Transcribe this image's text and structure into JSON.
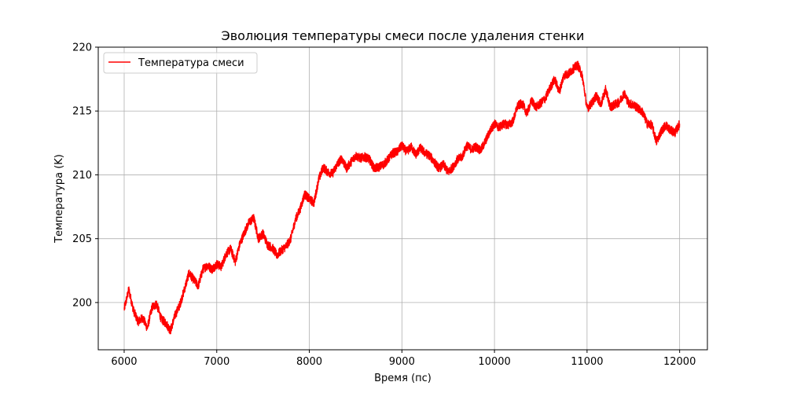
{
  "chart_data": {
    "type": "line",
    "title": "Эволюция температуры смеси после удаления стенки",
    "xlabel": "Время (пс)",
    "ylabel": "Температура (K)",
    "xlim": [
      5720,
      12300
    ],
    "ylim": [
      196.3,
      220
    ],
    "xticks": [
      6000,
      7000,
      8000,
      9000,
      10000,
      11000,
      12000
    ],
    "yticks": [
      200,
      205,
      210,
      215,
      220
    ],
    "grid": true,
    "legend": "top-left",
    "series": [
      {
        "name": "Температура смеси",
        "color": "#ff0000",
        "x": [
          6000,
          6050,
          6100,
          6150,
          6200,
          6250,
          6300,
          6350,
          6400,
          6450,
          6500,
          6550,
          6600,
          6650,
          6700,
          6750,
          6800,
          6850,
          6900,
          6950,
          7000,
          7050,
          7100,
          7150,
          7200,
          7250,
          7300,
          7350,
          7400,
          7450,
          7500,
          7550,
          7600,
          7650,
          7700,
          7750,
          7800,
          7850,
          7900,
          7950,
          8000,
          8050,
          8100,
          8150,
          8200,
          8250,
          8300,
          8350,
          8400,
          8450,
          8500,
          8550,
          8600,
          8650,
          8700,
          8750,
          8800,
          8850,
          8900,
          8950,
          9000,
          9050,
          9100,
          9150,
          9200,
          9250,
          9300,
          9350,
          9400,
          9450,
          9500,
          9550,
          9600,
          9650,
          9700,
          9750,
          9800,
          9850,
          9900,
          9950,
          10000,
          10050,
          10100,
          10150,
          10200,
          10250,
          10300,
          10350,
          10400,
          10450,
          10500,
          10550,
          10600,
          10650,
          10700,
          10750,
          10800,
          10850,
          10900,
          10950,
          11000,
          11050,
          11100,
          11150,
          11200,
          11250,
          11300,
          11350,
          11400,
          11450,
          11500,
          11550,
          11600,
          11650,
          11700,
          11750,
          11800,
          11850,
          11900,
          11950,
          12000
        ],
        "y": [
          199.5,
          201.0,
          199.4,
          198.5,
          198.8,
          198.0,
          199.6,
          199.9,
          198.7,
          198.4,
          197.8,
          199.0,
          199.8,
          201.0,
          202.3,
          201.8,
          201.3,
          202.6,
          202.9,
          202.6,
          203.0,
          202.8,
          203.8,
          204.2,
          203.2,
          204.6,
          205.5,
          206.3,
          206.6,
          205.0,
          205.4,
          204.5,
          204.3,
          203.7,
          204.1,
          204.4,
          205.0,
          206.5,
          207.3,
          208.5,
          208.1,
          207.8,
          209.6,
          210.6,
          210.2,
          210.1,
          210.8,
          211.3,
          210.5,
          211.0,
          211.5,
          211.3,
          211.4,
          211.2,
          210.5,
          210.6,
          210.8,
          211.2,
          211.7,
          211.8,
          212.3,
          211.8,
          212.2,
          211.6,
          212.1,
          211.7,
          211.5,
          211.0,
          210.5,
          210.8,
          210.2,
          210.6,
          211.2,
          211.4,
          212.3,
          212.0,
          212.2,
          211.9,
          212.6,
          213.4,
          214.0,
          213.7,
          214.0,
          213.9,
          214.2,
          215.4,
          215.6,
          214.8,
          215.8,
          215.3,
          215.6,
          216.0,
          216.8,
          217.5,
          216.5,
          217.8,
          217.9,
          218.3,
          218.6,
          217.7,
          215.2,
          215.6,
          216.2,
          215.5,
          216.7,
          215.3,
          215.5,
          215.7,
          216.4,
          215.6,
          215.5,
          215.2,
          214.9,
          214.0,
          213.9,
          212.6,
          213.4,
          213.9,
          213.5,
          213.3,
          214.0
        ]
      }
    ]
  }
}
